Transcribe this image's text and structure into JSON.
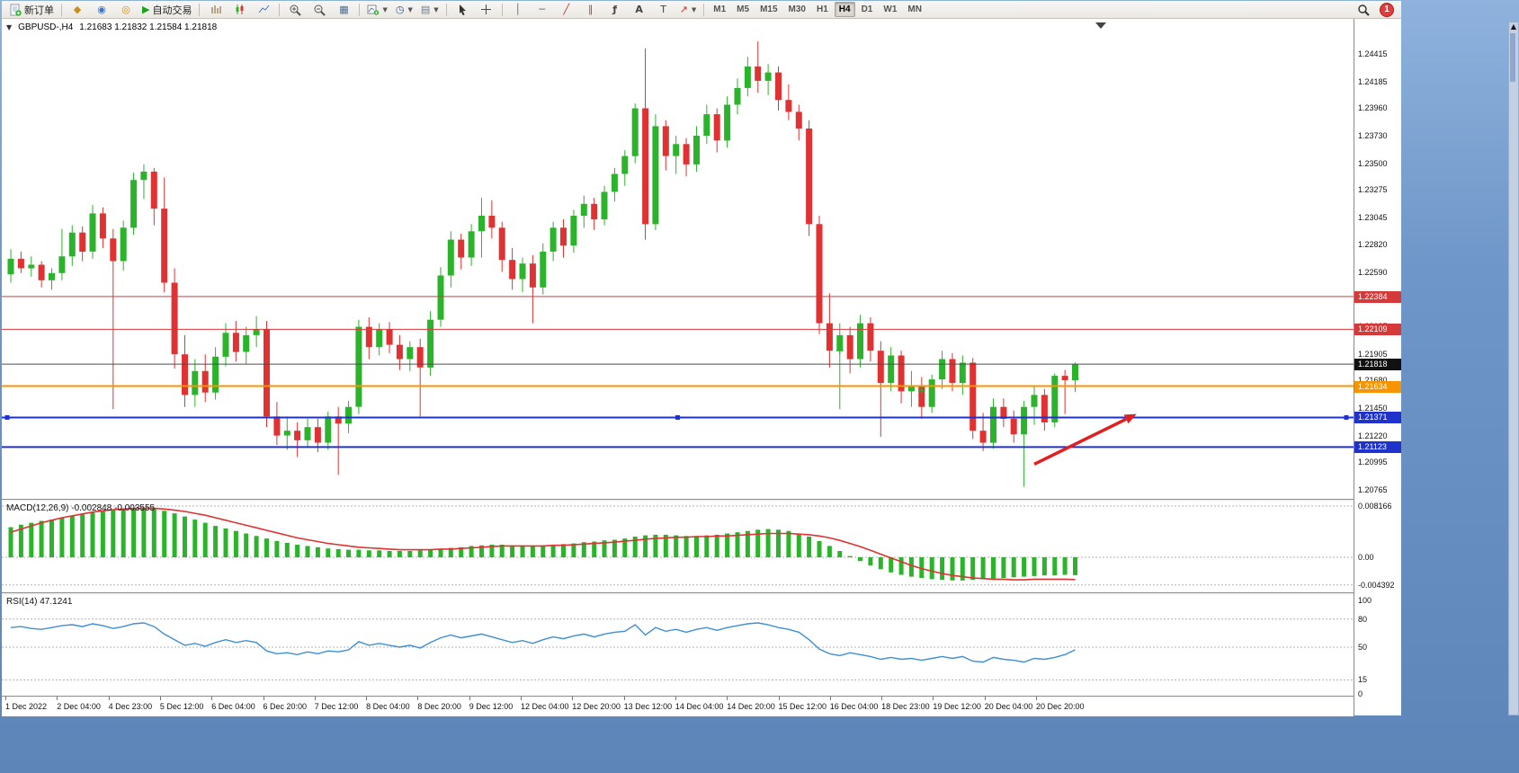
{
  "window": {
    "notification_count": "1"
  },
  "toolbar": {
    "new_order_label": "新订单",
    "auto_trading_label": "自动交易",
    "timeframes": [
      "M1",
      "M5",
      "M15",
      "M30",
      "H1",
      "H4",
      "D1",
      "W1",
      "MN"
    ],
    "active_timeframe": "H4"
  },
  "chart": {
    "title_symbol": "GBPUSD-,H4",
    "title_ohlc": "1.21683 1.21832 1.21584 1.21818",
    "price_axis_labels": [
      "1.24415",
      "1.24185",
      "1.23960",
      "1.23730",
      "1.23500",
      "1.23275",
      "1.23045",
      "1.22820",
      "1.22590",
      "1.22365",
      "1.22135",
      "1.21905",
      "1.21680",
      "1.21450",
      "1.21220",
      "1.20995",
      "1.20765"
    ],
    "time_axis_labels": [
      "1 Dec 2022",
      "2 Dec 04:00",
      "4 Dec 23:00",
      "5 Dec 12:00",
      "6 Dec 04:00",
      "6 Dec 20:00",
      "7 Dec 12:00",
      "8 Dec 04:00",
      "8 Dec 20:00",
      "9 Dec 12:00",
      "12 Dec 04:00",
      "12 Dec 20:00",
      "13 Dec 12:00",
      "14 Dec 04:00",
      "14 Dec 20:00",
      "15 Dec 12:00",
      "16 Dec 04:00",
      "18 Dec 23:00",
      "19 Dec 12:00",
      "20 Dec 04:00",
      "20 Dec 20:00"
    ],
    "hlines": [
      {
        "price": 1.22384,
        "label": "1.22384",
        "color": "#d43a3a",
        "tag_bg": "#d43a3a",
        "width": 1,
        "selected": false
      },
      {
        "price": 1.22109,
        "label": "1.22109",
        "color": "#d43a3a",
        "tag_bg": "#d43a3a",
        "width": 1,
        "selected": false
      },
      {
        "price": 1.21818,
        "label": "1.21818",
        "color": "#4d4d4d",
        "tag_bg": "#111111",
        "width": 1,
        "selected": false
      },
      {
        "price": 1.21634,
        "label": "1.21634",
        "color": "#f79400",
        "tag_bg": "#f79400",
        "width": 2,
        "selected": false
      },
      {
        "price": 1.21371,
        "label": "1.21371",
        "color": "#1f32cc",
        "tag_bg": "#1f32cc",
        "width": 2,
        "selected": true
      },
      {
        "price": 1.21123,
        "label": "1.21123",
        "color": "#1f32cc",
        "tag_bg": "#1f32cc",
        "width": 2,
        "selected": false
      }
    ]
  },
  "macd_panel": {
    "label": "MACD(12,26,9) -0.002848 -0.003555",
    "scale": [
      {
        "label": "0.008166",
        "value": 0.008166
      },
      {
        "label": "0.00",
        "value": 0
      },
      {
        "label": "-0.004392",
        "value": -0.004392
      }
    ]
  },
  "rsi_panel": {
    "label": "RSI(14) 47.1241",
    "scale": [
      {
        "label": "100",
        "value": 100
      },
      {
        "label": "80",
        "value": 80
      },
      {
        "label": "50",
        "value": 50
      },
      {
        "label": "15",
        "value": 15
      },
      {
        "label": "0",
        "value": 0
      }
    ],
    "levels": [
      80,
      50,
      15
    ]
  },
  "chart_data": {
    "type": "candlestick",
    "symbol": "GBPUSD",
    "timeframe": "H4",
    "colors": {
      "up": "#2bb32b",
      "down": "#e03232",
      "macd_hist": "#2bb32b",
      "macd_signal": "#e03232",
      "rsi_line": "#3f8fd2"
    },
    "price_range": {
      "max_label": 1.24415,
      "min_label": 1.20765
    },
    "candles": [
      [
        1.2257,
        1.2278,
        1.225,
        1.227
      ],
      [
        1.227,
        1.2276,
        1.2258,
        1.2262
      ],
      [
        1.2262,
        1.2272,
        1.2255,
        1.2265
      ],
      [
        1.2265,
        1.2268,
        1.2246,
        1.2252
      ],
      [
        1.2252,
        1.2262,
        1.2244,
        1.2258
      ],
      [
        1.2258,
        1.2295,
        1.2252,
        1.2272
      ],
      [
        1.2272,
        1.2298,
        1.2264,
        1.2292
      ],
      [
        1.2292,
        1.2297,
        1.2268,
        1.2276
      ],
      [
        1.2276,
        1.2315,
        1.227,
        1.2308
      ],
      [
        1.2308,
        1.2313,
        1.2279,
        1.2287
      ],
      [
        1.2287,
        1.2295,
        1.2144,
        1.2268
      ],
      [
        1.2268,
        1.2302,
        1.226,
        1.2296
      ],
      [
        1.2296,
        1.2342,
        1.229,
        1.2336
      ],
      [
        1.2336,
        1.2349,
        1.232,
        1.2343
      ],
      [
        1.2343,
        1.2346,
        1.2298,
        1.2312
      ],
      [
        1.2312,
        1.2338,
        1.2242,
        1.225
      ],
      [
        1.225,
        1.2262,
        1.2178,
        1.219
      ],
      [
        1.219,
        1.2206,
        1.2146,
        1.2156
      ],
      [
        1.2156,
        1.2186,
        1.2146,
        1.2176
      ],
      [
        1.2176,
        1.219,
        1.215,
        1.2158
      ],
      [
        1.2158,
        1.2196,
        1.2152,
        1.2188
      ],
      [
        1.2188,
        1.2216,
        1.218,
        1.2208
      ],
      [
        1.2208,
        1.2218,
        1.2184,
        1.2192
      ],
      [
        1.2192,
        1.2213,
        1.2182,
        1.2206
      ],
      [
        1.2206,
        1.2222,
        1.2196,
        1.2211
      ],
      [
        1.2211,
        1.2218,
        1.2129,
        1.2138
      ],
      [
        1.2138,
        1.215,
        1.2114,
        1.2122
      ],
      [
        1.2122,
        1.2138,
        1.211,
        1.2126
      ],
      [
        1.2126,
        1.2133,
        1.2104,
        1.2118
      ],
      [
        1.2118,
        1.2136,
        1.2112,
        1.2129
      ],
      [
        1.2129,
        1.2136,
        1.2108,
        1.2116
      ],
      [
        1.2116,
        1.2142,
        1.211,
        1.2138
      ],
      [
        1.2138,
        1.2146,
        1.2089,
        1.2132
      ],
      [
        1.2132,
        1.2151,
        1.2124,
        1.2146
      ],
      [
        1.2146,
        1.2219,
        1.214,
        1.2213
      ],
      [
        1.2213,
        1.2221,
        1.2186,
        1.2196
      ],
      [
        1.2196,
        1.2216,
        1.2189,
        1.2211
      ],
      [
        1.2211,
        1.2217,
        1.2191,
        1.2198
      ],
      [
        1.2198,
        1.2206,
        1.2177,
        1.2186
      ],
      [
        1.2186,
        1.2201,
        1.2176,
        1.2196
      ],
      [
        1.2196,
        1.2203,
        1.2138,
        1.2179
      ],
      [
        1.2179,
        1.2226,
        1.2172,
        1.2219
      ],
      [
        1.2219,
        1.2263,
        1.2213,
        1.2256
      ],
      [
        1.2256,
        1.2293,
        1.2246,
        1.2286
      ],
      [
        1.2286,
        1.2291,
        1.2261,
        1.2271
      ],
      [
        1.2271,
        1.2299,
        1.2264,
        1.2293
      ],
      [
        1.2293,
        1.2321,
        1.2271,
        1.2306
      ],
      [
        1.2306,
        1.2319,
        1.2287,
        1.2296
      ],
      [
        1.2296,
        1.2301,
        1.2259,
        1.2269
      ],
      [
        1.2269,
        1.2279,
        1.2244,
        1.2253
      ],
      [
        1.2253,
        1.2271,
        1.2242,
        1.2266
      ],
      [
        1.2266,
        1.2273,
        1.2216,
        1.2246
      ],
      [
        1.2246,
        1.2283,
        1.224,
        1.2276
      ],
      [
        1.2276,
        1.2301,
        1.2268,
        1.2296
      ],
      [
        1.2296,
        1.2303,
        1.2271,
        1.2281
      ],
      [
        1.2281,
        1.2311,
        1.2275,
        1.2306
      ],
      [
        1.2306,
        1.2323,
        1.2296,
        1.2316
      ],
      [
        1.2316,
        1.2321,
        1.2294,
        1.2303
      ],
      [
        1.2303,
        1.2331,
        1.2298,
        1.2326
      ],
      [
        1.2326,
        1.2346,
        1.2318,
        1.2341
      ],
      [
        1.2341,
        1.2361,
        1.2331,
        1.2356
      ],
      [
        1.2356,
        1.24,
        1.235,
        1.2396
      ],
      [
        1.2396,
        1.2446,
        1.2286,
        1.2299
      ],
      [
        1.2299,
        1.2391,
        1.2294,
        1.2381
      ],
      [
        1.2381,
        1.2386,
        1.2344,
        1.2356
      ],
      [
        1.2356,
        1.2373,
        1.2341,
        1.2366
      ],
      [
        1.2366,
        1.2371,
        1.2339,
        1.2349
      ],
      [
        1.2349,
        1.2381,
        1.2343,
        1.2373
      ],
      [
        1.2373,
        1.2399,
        1.2366,
        1.2391
      ],
      [
        1.2391,
        1.2396,
        1.2359,
        1.2369
      ],
      [
        1.2369,
        1.2406,
        1.2363,
        1.2399
      ],
      [
        1.2399,
        1.2421,
        1.2391,
        1.2413
      ],
      [
        1.2413,
        1.2439,
        1.2406,
        1.2431
      ],
      [
        1.2431,
        1.2452,
        1.2409,
        1.2419
      ],
      [
        1.2419,
        1.2433,
        1.2407,
        1.2426
      ],
      [
        1.2426,
        1.2431,
        1.2394,
        1.2403
      ],
      [
        1.2403,
        1.2416,
        1.2386,
        1.2393
      ],
      [
        1.2393,
        1.2399,
        1.2369,
        1.2379
      ],
      [
        1.2379,
        1.2386,
        1.2289,
        1.2299
      ],
      [
        1.2299,
        1.2306,
        1.2207,
        1.2216
      ],
      [
        1.2216,
        1.2241,
        1.2179,
        1.2193
      ],
      [
        1.2193,
        1.2216,
        1.2144,
        1.2206
      ],
      [
        1.2206,
        1.2213,
        1.2174,
        1.2186
      ],
      [
        1.2186,
        1.2223,
        1.2179,
        1.2216
      ],
      [
        1.2216,
        1.2221,
        1.2184,
        1.2193
      ],
      [
        1.2193,
        1.2201,
        1.2121,
        1.2166
      ],
      [
        1.2166,
        1.2196,
        1.2159,
        1.2189
      ],
      [
        1.2189,
        1.2193,
        1.2149,
        1.2159
      ],
      [
        1.2159,
        1.2176,
        1.2146,
        1.2163
      ],
      [
        1.2163,
        1.2171,
        1.2136,
        1.2146
      ],
      [
        1.2146,
        1.2173,
        1.2141,
        1.2169
      ],
      [
        1.2169,
        1.2193,
        1.2161,
        1.2186
      ],
      [
        1.2186,
        1.2191,
        1.2159,
        1.2166
      ],
      [
        1.2166,
        1.2189,
        1.2156,
        1.2183
      ],
      [
        1.2183,
        1.2187,
        1.2119,
        1.2126
      ],
      [
        1.2126,
        1.2141,
        1.2109,
        1.2116
      ],
      [
        1.2116,
        1.2153,
        1.2111,
        1.2146
      ],
      [
        1.2146,
        1.2153,
        1.2129,
        1.2136
      ],
      [
        1.2136,
        1.2143,
        1.2116,
        1.2123
      ],
      [
        1.2123,
        1.2151,
        1.2079,
        1.2146
      ],
      [
        1.2146,
        1.2163,
        1.2131,
        1.2156
      ],
      [
        1.2156,
        1.2161,
        1.2126,
        1.2133
      ],
      [
        1.2133,
        1.2174,
        1.2129,
        1.2172
      ],
      [
        1.2172,
        1.2177,
        1.214,
        1.21683
      ],
      [
        1.21683,
        1.21832,
        1.21584,
        1.21818
      ]
    ],
    "macd": {
      "histogram": [
        0.0048,
        0.0052,
        0.0055,
        0.0058,
        0.006,
        0.0063,
        0.0066,
        0.0068,
        0.0071,
        0.0073,
        0.0075,
        0.0076,
        0.0077,
        0.0078,
        0.0077,
        0.0074,
        0.007,
        0.0065,
        0.006,
        0.0055,
        0.005,
        0.0046,
        0.0042,
        0.0038,
        0.0034,
        0.003,
        0.0026,
        0.0023,
        0.002,
        0.0018,
        0.0016,
        0.0014,
        0.0013,
        0.0012,
        0.0012,
        0.0011,
        0.0011,
        0.001,
        0.001,
        0.001,
        0.0011,
        0.0012,
        0.0013,
        0.0015,
        0.0016,
        0.0018,
        0.0019,
        0.002,
        0.002,
        0.0019,
        0.0019,
        0.0018,
        0.0019,
        0.002,
        0.0021,
        0.0022,
        0.0024,
        0.0025,
        0.0027,
        0.0028,
        0.003,
        0.0033,
        0.0035,
        0.0036,
        0.0036,
        0.0035,
        0.0034,
        0.0034,
        0.0035,
        0.0036,
        0.0038,
        0.004,
        0.0042,
        0.0044,
        0.0045,
        0.0044,
        0.0042,
        0.0038,
        0.0033,
        0.0026,
        0.0018,
        0.001,
        0.0002,
        -0.0006,
        -0.0013,
        -0.0019,
        -0.0024,
        -0.0028,
        -0.0031,
        -0.0033,
        -0.0035,
        -0.0036,
        -0.0037,
        -0.0037,
        -0.0036,
        -0.0035,
        -0.0034,
        -0.0033,
        -0.0032,
        -0.0031,
        -0.003,
        -0.0029,
        -0.0029,
        -0.0028,
        -0.002848
      ],
      "signal": [
        0.004,
        0.0045,
        0.005,
        0.0055,
        0.0059,
        0.0063,
        0.0066,
        0.0069,
        0.0072,
        0.0074,
        0.0076,
        0.0077,
        0.0078,
        0.0078,
        0.0078,
        0.0077,
        0.0075,
        0.0073,
        0.007,
        0.0067,
        0.0063,
        0.0059,
        0.0055,
        0.0051,
        0.0047,
        0.0043,
        0.0039,
        0.0035,
        0.0031,
        0.0028,
        0.0025,
        0.0022,
        0.002,
        0.0018,
        0.0016,
        0.0015,
        0.0014,
        0.0013,
        0.0012,
        0.0012,
        0.0012,
        0.0012,
        0.0013,
        0.0013,
        0.0014,
        0.0015,
        0.0016,
        0.0017,
        0.0018,
        0.0018,
        0.0018,
        0.0018,
        0.0018,
        0.0019,
        0.0019,
        0.002,
        0.0021,
        0.0022,
        0.0023,
        0.0024,
        0.0026,
        0.0027,
        0.0029,
        0.003,
        0.0031,
        0.0032,
        0.0032,
        0.0033,
        0.0033,
        0.0034,
        0.0034,
        0.0035,
        0.0036,
        0.0037,
        0.0038,
        0.0038,
        0.0038,
        0.0037,
        0.0036,
        0.0034,
        0.0031,
        0.0027,
        0.0022,
        0.0017,
        0.0011,
        0.0005,
        -0.0001,
        -0.0007,
        -0.0013,
        -0.0018,
        -0.0022,
        -0.0026,
        -0.0029,
        -0.0031,
        -0.0033,
        -0.0034,
        -0.0035,
        -0.0035,
        -0.0036,
        -0.0036,
        -0.0035,
        -0.0035,
        -0.0035,
        -0.0035,
        -0.003555
      ]
    },
    "rsi": [
      71,
      72,
      70,
      69,
      71,
      73,
      74,
      72,
      75,
      73,
      70,
      72,
      75,
      76,
      72,
      64,
      58,
      52,
      54,
      51,
      55,
      58,
      55,
      57,
      55,
      46,
      43,
      44,
      42,
      45,
      43,
      46,
      45,
      47,
      56,
      52,
      54,
      52,
      50,
      52,
      49,
      55,
      60,
      63,
      60,
      62,
      64,
      61,
      58,
      55,
      57,
      54,
      58,
      61,
      59,
      62,
      64,
      61,
      64,
      66,
      67,
      74,
      63,
      71,
      67,
      69,
      66,
      69,
      71,
      68,
      71,
      73,
      75,
      76,
      74,
      71,
      69,
      66,
      58,
      48,
      43,
      41,
      44,
      42,
      40,
      37,
      39,
      37,
      38,
      36,
      38,
      40,
      38,
      40,
      35,
      34,
      39,
      37,
      36,
      34,
      38,
      37,
      39,
      42,
      47.1241
    ],
    "trend_arrow": {
      "from_bar": 100,
      "from_price": 1.2098,
      "to_bar": 110,
      "to_price": 1.214,
      "color": "#e02020"
    },
    "markers": [
      {
        "bar": 81,
        "price": 1.2193
      },
      {
        "bar": 89,
        "price": 1.216
      }
    ]
  }
}
